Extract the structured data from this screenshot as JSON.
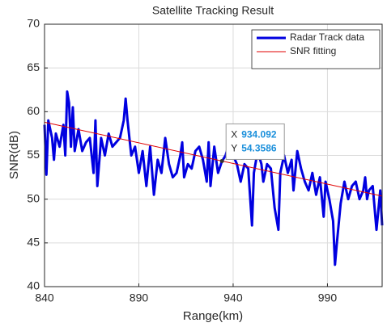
{
  "chart_data": {
    "type": "line",
    "title": "Satellite Tracking Result",
    "xlabel": "Range(km)",
    "ylabel": "SNR(dB)",
    "xlim": [
      840,
      1019
    ],
    "ylim": [
      40,
      70
    ],
    "xticks": [
      840,
      890,
      940,
      990
    ],
    "yticks": [
      40,
      45,
      50,
      55,
      60,
      65,
      70
    ],
    "grid": true,
    "legend": "northeast",
    "series": [
      {
        "name": "Radar Track data",
        "color": "#0000e0",
        "width": 3,
        "x": [
          840,
          841,
          842,
          844,
          845,
          846,
          848,
          850,
          851,
          852,
          853,
          854,
          855,
          856,
          858,
          860,
          862,
          864,
          866,
          867,
          868,
          870,
          872,
          874,
          876,
          878,
          880,
          882,
          883,
          884,
          886,
          888,
          890,
          892,
          894,
          896,
          898,
          900,
          902,
          904,
          906,
          908,
          910,
          912,
          913,
          914,
          916,
          918,
          920,
          922,
          924,
          926,
          927,
          928,
          930,
          932,
          934,
          936,
          938,
          940,
          942,
          944,
          946,
          948,
          950,
          951,
          953,
          955,
          956,
          958,
          960,
          962,
          964,
          965,
          967,
          969,
          971,
          972,
          974,
          976,
          978,
          980,
          982,
          984,
          986,
          988,
          989,
          991,
          993,
          994,
          995,
          997,
          999,
          1001,
          1003,
          1005,
          1007,
          1009,
          1010,
          1011,
          1012,
          1014,
          1016,
          1018,
          1019
        ],
        "values": [
          58.5,
          52.8,
          59,
          57,
          54.5,
          57.5,
          56,
          58.5,
          55,
          62.3,
          61,
          56,
          60.5,
          55.5,
          58,
          55.5,
          56.5,
          57,
          53,
          59,
          51.5,
          57,
          55,
          57.5,
          56,
          56.5,
          57,
          59,
          61.5,
          59,
          55,
          56,
          53,
          55.5,
          51.5,
          56,
          50.5,
          54.5,
          53,
          57,
          54,
          52.5,
          53,
          55,
          56.5,
          52.5,
          54,
          53.5,
          55.5,
          56,
          54.5,
          52,
          56.5,
          51.5,
          56,
          53,
          54.3,
          55,
          56.5,
          55,
          54,
          52,
          54,
          53.5,
          47,
          53,
          55.5,
          54,
          52,
          54,
          53.5,
          49,
          46.5,
          53,
          55,
          53,
          54.5,
          51,
          55.5,
          53.5,
          52,
          51,
          53,
          50.5,
          52.5,
          48,
          52,
          50,
          47.5,
          42.5,
          45,
          49.5,
          52,
          50,
          51.5,
          52,
          50,
          51,
          52.5,
          50,
          51,
          51.5,
          46.5,
          51,
          47
        ]
      },
      {
        "name": "SNR fitting",
        "color": "#e00000",
        "width": 1,
        "x": [
          840,
          1019
        ],
        "values": [
          58.8,
          50.35
        ]
      }
    ],
    "annotation": {
      "label_x": "X",
      "x": 934.092,
      "label_y": "Y",
      "y": 54.3586
    }
  }
}
